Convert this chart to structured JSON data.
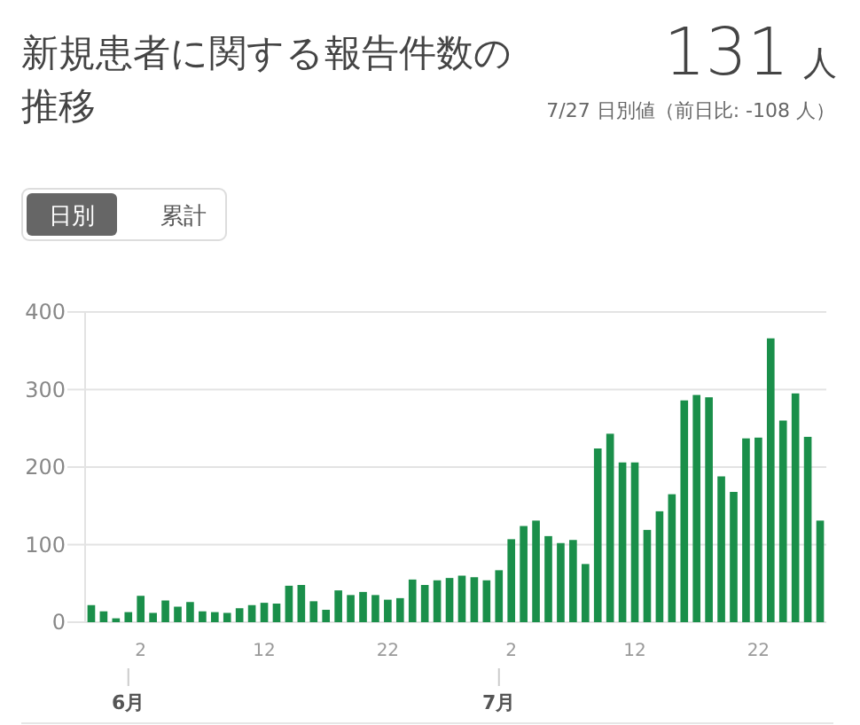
{
  "chart_data": {
    "type": "bar",
    "title": "新規患者に関する報告件数の推移",
    "subtitle": "7/27 日別値（前日比: -108 人）",
    "annotations": [
      "131 人",
      "日別",
      "累計",
      {
        "text": "6月",
        "x": "--06-01"
      },
      {
        "text": "7月",
        "x": "--07-01"
      }
    ],
    "x": [
      "--05-29",
      "--05-30",
      "--05-31",
      "--06-01",
      "--06-02",
      "--06-03",
      "--06-04",
      "--06-05",
      "--06-06",
      "--06-07",
      "--06-08",
      "--06-09",
      "--06-10",
      "--06-11",
      "--06-12",
      "--06-13",
      "--06-14",
      "--06-15",
      "--06-16",
      "--06-17",
      "--06-18",
      "--06-19",
      "--06-20",
      "--06-21",
      "--06-22",
      "--06-23",
      "--06-24",
      "--06-25",
      "--06-26",
      "--06-27",
      "--06-28",
      "--06-29",
      "--06-30",
      "--07-01",
      "--07-02",
      "--07-03",
      "--07-04",
      "--07-05",
      "--07-06",
      "--07-07",
      "--07-08",
      "--07-09",
      "--07-10",
      "--07-11",
      "--07-12",
      "--07-13",
      "--07-14",
      "--07-15",
      "--07-16",
      "--07-17",
      "--07-18",
      "--07-19",
      "--07-20",
      "--07-21",
      "--07-22",
      "--07-23",
      "--07-24",
      "--07-25",
      "--07-26",
      "--07-27"
    ],
    "values": [
      22,
      14,
      5,
      13,
      34,
      12,
      28,
      20,
      26,
      14,
      13,
      12,
      18,
      22,
      25,
      24,
      47,
      48,
      27,
      16,
      41,
      35,
      39,
      35,
      29,
      31,
      55,
      48,
      54,
      57,
      60,
      58,
      54,
      67,
      107,
      124,
      131,
      111,
      102,
      106,
      75,
      224,
      243,
      206,
      206,
      119,
      143,
      165,
      286,
      293,
      290,
      188,
      168,
      237,
      238,
      366,
      260,
      295,
      239,
      131
    ],
    "color": "#1a8f4a",
    "xlim": [
      "--05-28T12:00",
      "--07-27T12:00"
    ],
    "xticks": [
      {
        "value": "--06-02",
        "label": "2"
      },
      {
        "value": "--06-12",
        "label": "12"
      },
      {
        "value": "--06-22",
        "label": "22"
      },
      {
        "value": "--07-02",
        "label": "2"
      },
      {
        "value": "--07-12",
        "label": "12"
      },
      {
        "value": "--07-22",
        "label": "22"
      }
    ],
    "ylim": [
      0,
      400
    ],
    "yticks": [
      0,
      100,
      200,
      300,
      400
    ],
    "grid": "y"
  }
}
